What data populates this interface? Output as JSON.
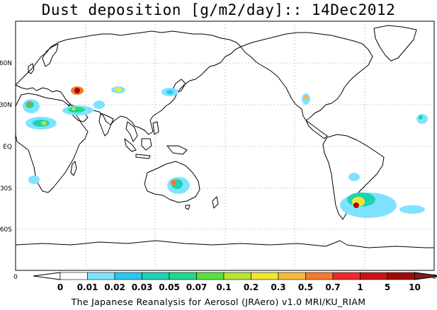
{
  "title": "Dust deposition [g/m2/day]:: 14Dec2012",
  "lat_labels": [
    "60N",
    "30N",
    "EQ",
    "30S",
    "60S"
  ],
  "axis_zero_left": "0",
  "axis_zero_right": "0",
  "colorbar": {
    "levels": [
      "0",
      "0.01",
      "0.02",
      "0.03",
      "0.05",
      "0.07",
      "0.1",
      "0.2",
      "0.3",
      "0.5",
      "0.7",
      "1",
      "5",
      "10"
    ],
    "colors": [
      "#ffffff",
      "#ffffff",
      "#7fe3ff",
      "#28c8f0",
      "#1ed2b4",
      "#21d98c",
      "#5ae23c",
      "#b4e632",
      "#f0e632",
      "#f7b93c",
      "#f57a2d",
      "#ec2a2a",
      "#c81414",
      "#a00a0a",
      "#781e1e"
    ]
  },
  "footer": "The Japanese Reanalysis for Aerosol (JRAero) v1.0 MRI/KU_RIAM",
  "colors": {
    "frame": "#000000",
    "grid": "#aaaaaa",
    "land_outline": "#000000"
  }
}
